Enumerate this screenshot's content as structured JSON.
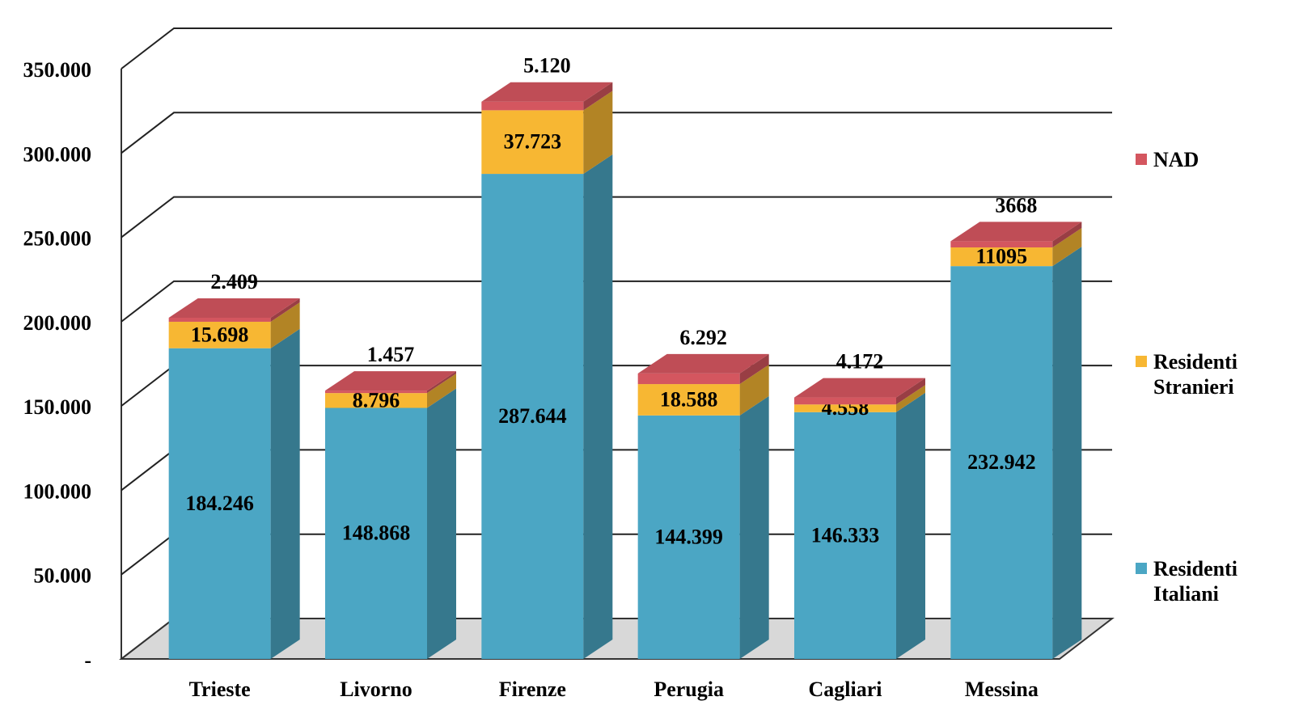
{
  "chart_data": {
    "type": "bar3d_stacked",
    "categories": [
      "Trieste",
      "Livorno",
      "Firenze",
      "Perugia",
      "Cagliari",
      "Messina"
    ],
    "series": [
      {
        "name": "Residenti Italiani",
        "color": "#4ba6c4",
        "values": [
          184246,
          148868,
          287644,
          144399,
          146333,
          232942
        ],
        "value_labels": [
          "184.246",
          "148.868",
          "287.644",
          "144.399",
          "146.333",
          "232.942"
        ]
      },
      {
        "name": "Residenti Stranieri",
        "color": "#f7b733",
        "values": [
          15698,
          8796,
          37723,
          18588,
          4558,
          11095
        ],
        "value_labels": [
          "15.698",
          "8.796",
          "37.723",
          "18.588",
          "4.558",
          "11095"
        ]
      },
      {
        "name": "NAD",
        "color": "#d4565f",
        "values": [
          2409,
          1457,
          5120,
          6292,
          4172,
          3668
        ],
        "value_labels": [
          "2.409",
          "1.457",
          "5.120",
          "6.292",
          "4.172",
          "3668"
        ]
      }
    ],
    "ylim": [
      0,
      350000
    ],
    "yticks": [
      {
        "value": 0,
        "label": "-"
      },
      {
        "value": 50000,
        "label": "50.000"
      },
      {
        "value": 100000,
        "label": "100.000"
      },
      {
        "value": 150000,
        "label": "150.000"
      },
      {
        "value": 200000,
        "label": "200.000"
      },
      {
        "value": 250000,
        "label": "250.000"
      },
      {
        "value": 300000,
        "label": "300.000"
      },
      {
        "value": 350000,
        "label": "350.000"
      }
    ],
    "grid": true,
    "legend": "right"
  }
}
